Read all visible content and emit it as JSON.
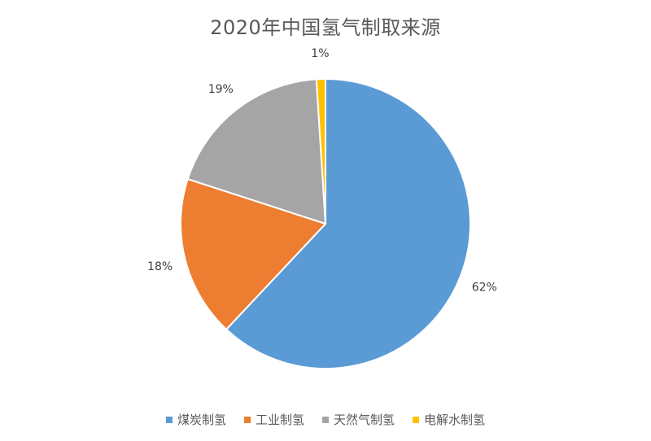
{
  "chart_data": {
    "type": "pie",
    "title": "2020年中国氢气制取来源",
    "categories": [
      "煤炭制氢",
      "工业制氢",
      "天然气制氢",
      "电解水制氢"
    ],
    "values": [
      62,
      18,
      19,
      1
    ],
    "value_labels": [
      "62%",
      "18%",
      "19%",
      "1%"
    ],
    "colors": [
      "#5B9BD5",
      "#ED7D31",
      "#A5A5A5",
      "#FFC000"
    ],
    "legend_position": "bottom"
  }
}
